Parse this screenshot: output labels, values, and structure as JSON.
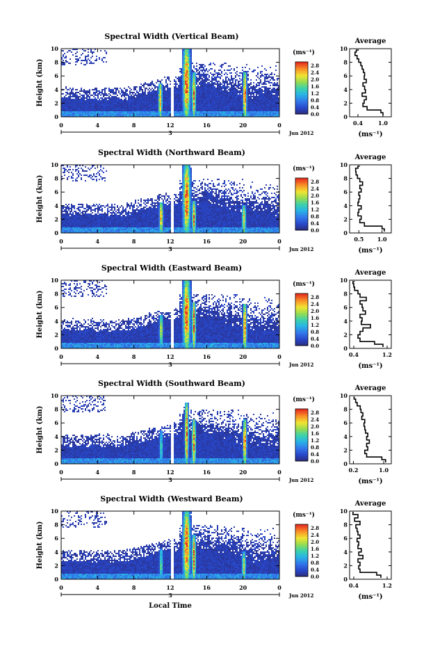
{
  "chart_data": [
    {
      "type": "heatmap",
      "title": "Spectral Width (Vertical Beam)",
      "ylabel": "Height (km)",
      "ylim": [
        0,
        10
      ],
      "yticks": [
        "0",
        "2",
        "4",
        "6",
        "8",
        "10"
      ],
      "xticks": [
        "0",
        "4",
        "8",
        "12",
        "16",
        "20",
        "0"
      ],
      "xlim": [
        0,
        24
      ],
      "date_day": "3",
      "date_month": "Jun 2012",
      "colorbar": {
        "unit": "(ms⁻¹)",
        "ticks": [
          "0.0",
          "0.4",
          "0.8",
          "1.2",
          "1.6",
          "2.0",
          "2.4",
          "2.8"
        ],
        "range": [
          0,
          3.0
        ]
      },
      "features": [
        {
          "time": 10.9,
          "top": 5.0,
          "peak": 2.8
        },
        {
          "time": 13.8,
          "top": 10.0,
          "peak": 3.0
        },
        {
          "time": 14.6,
          "top": 6.5,
          "peak": 3.0
        },
        {
          "time": 20.2,
          "top": 6.6,
          "peak": 3.0
        }
      ],
      "profile": {
        "title": "Average",
        "xlabel": "(ms⁻¹)",
        "xticks": [
          "0.4",
          "1.0"
        ],
        "xlim": [
          0.2,
          1.2
        ],
        "height": [
          0.2,
          0.6,
          1.0,
          1.5,
          2.0,
          2.5,
          3.0,
          3.5,
          4.0,
          4.5,
          5.0,
          5.5,
          6.0,
          6.5,
          7.0,
          7.5,
          8.0,
          8.5,
          9.0,
          9.5,
          9.8
        ],
        "width": [
          1.0,
          0.95,
          0.62,
          0.52,
          0.55,
          0.6,
          0.5,
          0.58,
          0.56,
          0.52,
          0.6,
          0.55,
          0.56,
          0.53,
          0.5,
          0.47,
          0.42,
          0.38,
          0.33,
          0.36,
          0.42
        ]
      }
    },
    {
      "type": "heatmap",
      "title": "Spectral Width (Northward Beam)",
      "ylabel": "Height (km)",
      "ylim": [
        0,
        10
      ],
      "yticks": [
        "0",
        "2",
        "4",
        "6",
        "8",
        "10"
      ],
      "xticks": [
        "0",
        "4",
        "8",
        "12",
        "16",
        "20",
        "0"
      ],
      "xlim": [
        0,
        24
      ],
      "date_day": "3",
      "date_month": "Jun 2012",
      "colorbar": {
        "unit": "(ms⁻¹)",
        "ticks": [
          "0.0",
          "0.4",
          "0.8",
          "1.2",
          "1.6",
          "2.0",
          "2.4",
          "2.8"
        ],
        "range": [
          0,
          3.0
        ]
      },
      "features": [
        {
          "time": 11.0,
          "top": 4.5,
          "peak": 2.8
        },
        {
          "time": 13.8,
          "top": 10.0,
          "peak": 3.0
        },
        {
          "time": 14.6,
          "top": 4.6,
          "peak": 2.9
        },
        {
          "time": 20.1,
          "top": 4.0,
          "peak": 2.6
        }
      ],
      "profile": {
        "title": "Average",
        "xlabel": "(ms⁻¹)",
        "xticks": [
          "0.5",
          "1.0"
        ],
        "xlim": [
          0.3,
          1.2
        ],
        "height": [
          0.2,
          0.6,
          1.0,
          1.5,
          2.0,
          2.5,
          3.0,
          3.5,
          4.0,
          4.5,
          5.0,
          5.5,
          6.0,
          6.5,
          7.0,
          7.5,
          8.0,
          8.5,
          9.0,
          9.5,
          9.8
        ],
        "width": [
          1.05,
          1.0,
          0.62,
          0.52,
          0.55,
          0.48,
          0.5,
          0.55,
          0.48,
          0.5,
          0.52,
          0.5,
          0.55,
          0.52,
          0.58,
          0.52,
          0.47,
          0.44,
          0.43,
          0.48,
          0.52
        ]
      }
    },
    {
      "type": "heatmap",
      "title": "Spectral Width (Eastward Beam)",
      "ylabel": "Height (km)",
      "ylim": [
        0,
        10
      ],
      "yticks": [
        "0",
        "2",
        "4",
        "6",
        "8",
        "10"
      ],
      "xticks": [
        "0",
        "4",
        "8",
        "12",
        "16",
        "20",
        "0"
      ],
      "xlim": [
        0,
        24
      ],
      "date_day": "3",
      "date_month": "Jun 2012",
      "colorbar": {
        "unit": "(ms⁻¹)",
        "ticks": [
          "0.0",
          "0.4",
          "0.8",
          "1.2",
          "1.6",
          "2.0",
          "2.4",
          "2.8"
        ],
        "range": [
          0,
          3.0
        ]
      },
      "features": [
        {
          "time": 11.0,
          "top": 5.0,
          "peak": 2.2
        },
        {
          "time": 13.8,
          "top": 10.0,
          "peak": 3.0
        },
        {
          "time": 14.6,
          "top": 6.8,
          "peak": 3.0
        },
        {
          "time": 20.2,
          "top": 6.6,
          "peak": 3.0
        }
      ],
      "profile": {
        "title": "Average",
        "xlabel": "(ms⁻¹)",
        "xticks": [
          "0.4",
          "1.2"
        ],
        "xlim": [
          0.3,
          1.3
        ],
        "height": [
          0.2,
          0.6,
          1.0,
          1.5,
          2.0,
          2.5,
          3.0,
          3.5,
          4.0,
          4.5,
          5.0,
          5.5,
          6.0,
          6.5,
          7.0,
          7.5,
          8.0,
          8.5,
          9.0,
          9.5,
          9.8
        ],
        "width": [
          1.1,
          0.9,
          0.55,
          0.5,
          0.55,
          0.62,
          0.8,
          0.58,
          0.6,
          0.55,
          0.68,
          0.62,
          0.6,
          0.55,
          0.7,
          0.55,
          0.5,
          0.42,
          0.4,
          0.38,
          0.42
        ]
      }
    },
    {
      "type": "heatmap",
      "title": "Spectral Width (Southward Beam)",
      "ylabel": "Height (km)",
      "ylim": [
        0,
        10
      ],
      "yticks": [
        "0",
        "2",
        "4",
        "6",
        "8",
        "10"
      ],
      "xticks": [
        "0",
        "4",
        "8",
        "12",
        "16",
        "20",
        "0"
      ],
      "xlim": [
        0,
        24
      ],
      "date_day": "3",
      "date_month": "Jun 2012",
      "colorbar": {
        "unit": "(ms⁻¹)",
        "ticks": [
          "0.0",
          "0.4",
          "0.8",
          "1.2",
          "1.6",
          "2.0",
          "2.4",
          "2.8"
        ],
        "range": [
          0,
          3.0
        ]
      },
      "features": [
        {
          "time": 11.0,
          "top": 5.0,
          "peak": 1.6
        },
        {
          "time": 13.8,
          "top": 9.0,
          "peak": 3.0
        },
        {
          "time": 14.6,
          "top": 6.5,
          "peak": 3.0
        },
        {
          "time": 20.2,
          "top": 6.5,
          "peak": 3.0
        }
      ],
      "profile": {
        "title": "Average",
        "xlabel": "(ms⁻¹)",
        "xticks": [
          "0.2",
          "1.0"
        ],
        "xlim": [
          0.1,
          1.2
        ],
        "height": [
          0.2,
          0.6,
          1.0,
          1.5,
          2.0,
          2.5,
          3.0,
          3.5,
          4.0,
          4.5,
          5.0,
          5.5,
          6.0,
          6.5,
          7.0,
          7.5,
          8.0,
          8.5,
          9.0,
          9.5,
          9.8
        ],
        "width": [
          1.05,
          0.95,
          0.55,
          0.5,
          0.58,
          0.55,
          0.62,
          0.55,
          0.58,
          0.52,
          0.5,
          0.48,
          0.5,
          0.42,
          0.45,
          0.4,
          0.38,
          0.3,
          0.26,
          0.22,
          0.2
        ]
      }
    },
    {
      "type": "heatmap",
      "title": "Spectral Width (Westward Beam)",
      "ylabel": "Height (km)",
      "ylim": [
        0,
        10
      ],
      "yticks": [
        "0",
        "2",
        "4",
        "6",
        "8",
        "10"
      ],
      "xticks": [
        "0",
        "4",
        "8",
        "12",
        "16",
        "20",
        "0"
      ],
      "xlim": [
        0,
        24
      ],
      "date_day": "3",
      "date_month": "Jun 2012",
      "xlabel": "Local Time",
      "colorbar": {
        "unit": "(ms⁻¹)",
        "ticks": [
          "0.0",
          "0.4",
          "0.8",
          "1.2",
          "1.6",
          "2.0",
          "2.4",
          "2.8"
        ],
        "range": [
          0,
          3.0
        ]
      },
      "features": [
        {
          "time": 11.0,
          "top": 4.5,
          "peak": 1.8
        },
        {
          "time": 13.8,
          "top": 10.0,
          "peak": 3.0
        },
        {
          "time": 14.6,
          "top": 6.5,
          "peak": 3.0
        },
        {
          "time": 20.1,
          "top": 4.0,
          "peak": 2.4
        }
      ],
      "profile": {
        "title": "Average",
        "xlabel": "(ms⁻¹)",
        "xticks": [
          "0.4",
          "1.2"
        ],
        "xlim": [
          0.3,
          1.3
        ],
        "height": [
          0.2,
          0.6,
          1.0,
          1.5,
          2.0,
          2.5,
          3.0,
          3.5,
          4.0,
          4.5,
          5.0,
          5.5,
          6.0,
          6.5,
          7.0,
          7.5,
          8.0,
          8.5,
          9.0,
          9.5,
          9.8
        ],
        "width": [
          1.05,
          0.95,
          0.55,
          0.52,
          0.55,
          0.5,
          0.62,
          0.52,
          0.58,
          0.5,
          0.52,
          0.48,
          0.55,
          0.5,
          0.48,
          0.45,
          0.55,
          0.42,
          0.5,
          0.38,
          0.4
        ]
      }
    }
  ]
}
